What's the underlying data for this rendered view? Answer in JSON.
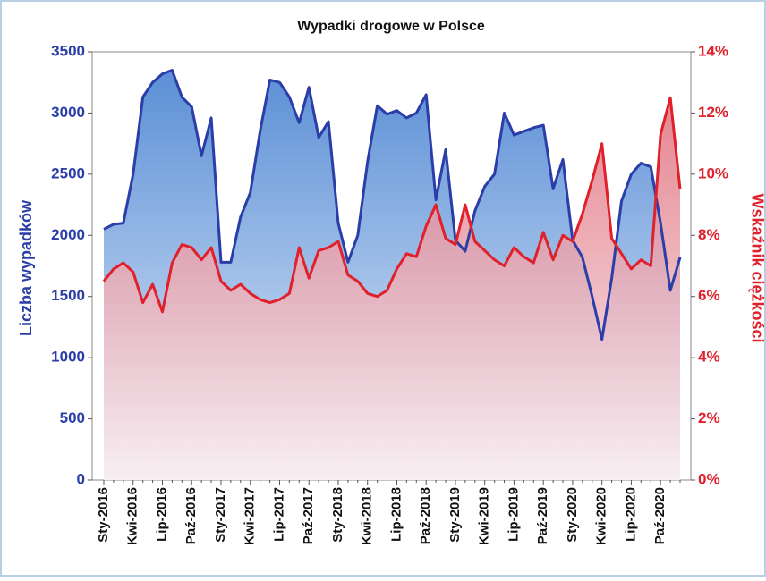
{
  "chart_data": {
    "type": "line",
    "title": "Wypadki drogowe w Polsce",
    "y_label": "Liczba wypadków",
    "y2_label": "Wskaźnik ciężkości",
    "categories": [
      "Sty-2016",
      null,
      null,
      "Kwi-2016",
      null,
      null,
      "Lip-2016",
      null,
      null,
      "Paź-2016",
      null,
      null,
      "Sty-2017",
      null,
      null,
      "Kwi-2017",
      null,
      null,
      "Lip-2017",
      null,
      null,
      "Paź-2017",
      null,
      null,
      "Sty-2018",
      null,
      null,
      "Kwi-2018",
      null,
      null,
      "Lip-2018",
      null,
      null,
      "Paź-2018",
      null,
      null,
      "Sty-2019",
      null,
      null,
      "Kwi-2019",
      null,
      null,
      "Lip-2019",
      null,
      null,
      "Paź-2019",
      null,
      null,
      "Sty-2020",
      null,
      null,
      "Kwi-2020",
      null,
      null,
      "Lip-2020",
      null,
      null,
      "Paź-2020",
      null,
      null
    ],
    "series": [
      {
        "name": "Liczba wypadków",
        "color": "#2b3ea8",
        "axis": "y",
        "values": [
          2050,
          2090,
          2100,
          2500,
          3130,
          3250,
          3320,
          3350,
          3130,
          3050,
          2650,
          2960,
          1780,
          1780,
          2150,
          2350,
          2850,
          3270,
          3250,
          3130,
          2920,
          3210,
          2800,
          2930,
          2100,
          1780,
          2000,
          2600,
          3060,
          2990,
          3020,
          2960,
          3000,
          3150,
          2290,
          2700,
          1960,
          1870,
          2200,
          2400,
          2500,
          3000,
          2820,
          2850,
          2880,
          2900,
          2380,
          2620,
          1960,
          1820,
          1500,
          1150,
          1650,
          2280,
          2500,
          2590,
          2560,
          2100,
          1550,
          1820
        ]
      },
      {
        "name": "Wskaźnik ciężkości",
        "color": "#e0202a",
        "axis": "y2",
        "values": [
          6.5,
          6.9,
          7.1,
          6.8,
          5.8,
          6.4,
          5.5,
          7.1,
          7.7,
          7.6,
          7.2,
          7.6,
          6.5,
          6.2,
          6.4,
          6.1,
          5.9,
          5.8,
          5.9,
          6.1,
          7.6,
          6.6,
          7.5,
          7.6,
          7.8,
          6.7,
          6.5,
          6.1,
          6.0,
          6.2,
          6.9,
          7.4,
          7.3,
          8.3,
          9.0,
          7.9,
          7.7,
          9.0,
          7.8,
          7.5,
          7.2,
          7.0,
          7.6,
          7.3,
          7.1,
          8.1,
          7.2,
          8.0,
          7.8,
          8.7,
          9.8,
          11.0,
          7.9,
          7.4,
          6.9,
          7.2,
          7.0,
          11.3,
          12.5,
          9.5
        ]
      }
    ],
    "ylim": [
      0,
      3500
    ],
    "yticks": [
      0,
      500,
      1000,
      1500,
      2000,
      2500,
      3000,
      3500
    ],
    "y2lim": [
      0,
      14
    ],
    "y2ticks": [
      {
        "value": 0,
        "label": "0%"
      },
      {
        "value": 2,
        "label": "2%"
      },
      {
        "value": 4,
        "label": "4%"
      },
      {
        "value": 6,
        "label": "6%"
      },
      {
        "value": 8,
        "label": "8%"
      },
      {
        "value": 10,
        "label": "10%"
      },
      {
        "value": 12,
        "label": "12%"
      },
      {
        "value": 14,
        "label": "14%"
      }
    ]
  }
}
